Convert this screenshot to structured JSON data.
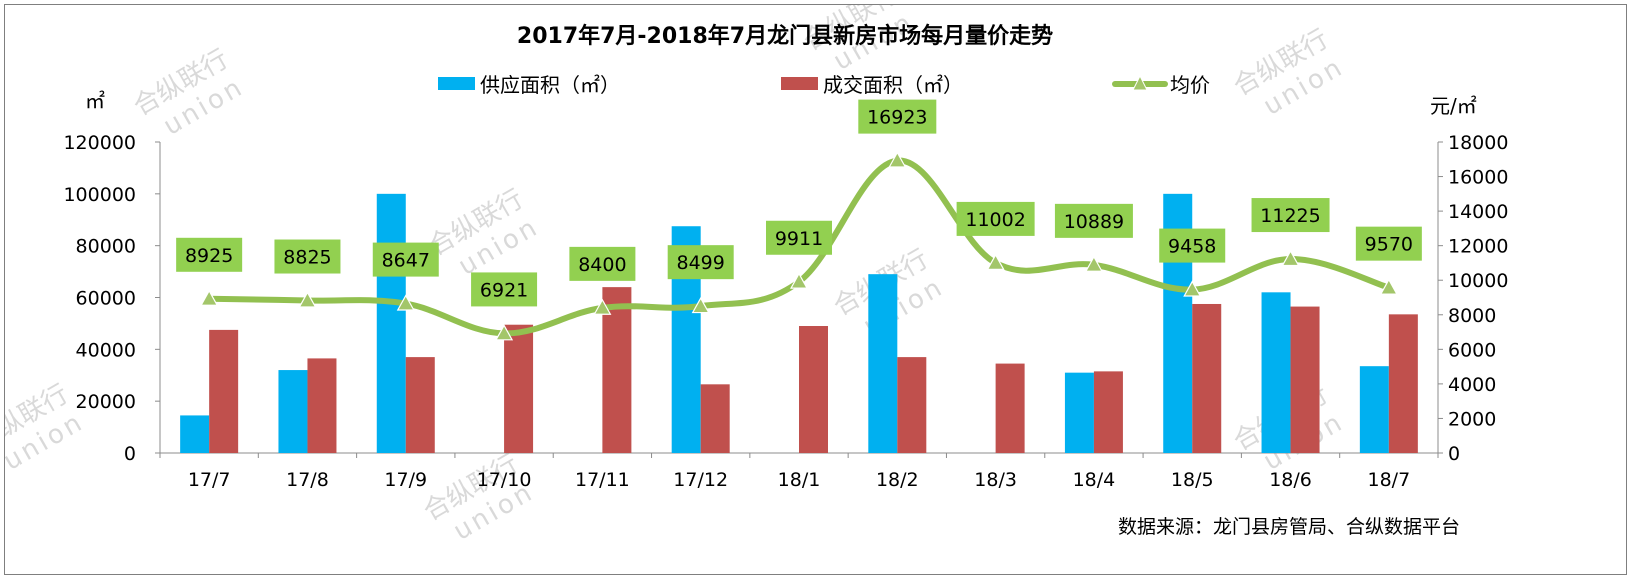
{
  "chart_data": {
    "type": "bar",
    "title": "2017年7月-2018年7月龙门县新房市场每月量价走势",
    "categories": [
      "17/7",
      "17/8",
      "17/9",
      "17/10",
      "17/11",
      "17/12",
      "18/1",
      "18/2",
      "18/3",
      "18/4",
      "18/5",
      "18/6",
      "18/7"
    ],
    "series": [
      {
        "name": "供应面积（㎡）",
        "type": "bar",
        "axis": "left",
        "color": "#00b0f0",
        "values": [
          14500,
          32000,
          100000,
          0,
          0,
          87500,
          0,
          69000,
          0,
          31000,
          100000,
          62000,
          33500
        ]
      },
      {
        "name": "成交面积（㎡）",
        "type": "bar",
        "axis": "left",
        "color": "#c0504d",
        "values": [
          47500,
          36500,
          37000,
          49500,
          64000,
          26500,
          49000,
          37000,
          34500,
          31500,
          57500,
          56500,
          53500
        ]
      },
      {
        "name": "均价",
        "type": "line",
        "axis": "right",
        "color": "#92c050",
        "values": [
          8925,
          8825,
          8647,
          6921,
          8400,
          8499,
          9911,
          16923,
          11002,
          10889,
          9458,
          11225,
          9570
        ]
      }
    ],
    "y_left": {
      "label": "㎡",
      "ticks": [
        "0",
        "20000",
        "40000",
        "60000",
        "80000",
        "100000",
        "120000"
      ],
      "range": [
        0,
        120000
      ]
    },
    "y_right": {
      "label": "元/㎡",
      "ticks": [
        "0",
        "2000",
        "4000",
        "6000",
        "8000",
        "10000",
        "12000",
        "14000",
        "16000",
        "18000"
      ],
      "range": [
        0,
        18000
      ]
    },
    "legend_position": "top",
    "grid": false,
    "source": "数据来源：龙门县房管局、合纵数据平台",
    "watermark": {
      "line1": "合纵联行",
      "line2": "union"
    },
    "label_bg_color": "#92d050"
  }
}
